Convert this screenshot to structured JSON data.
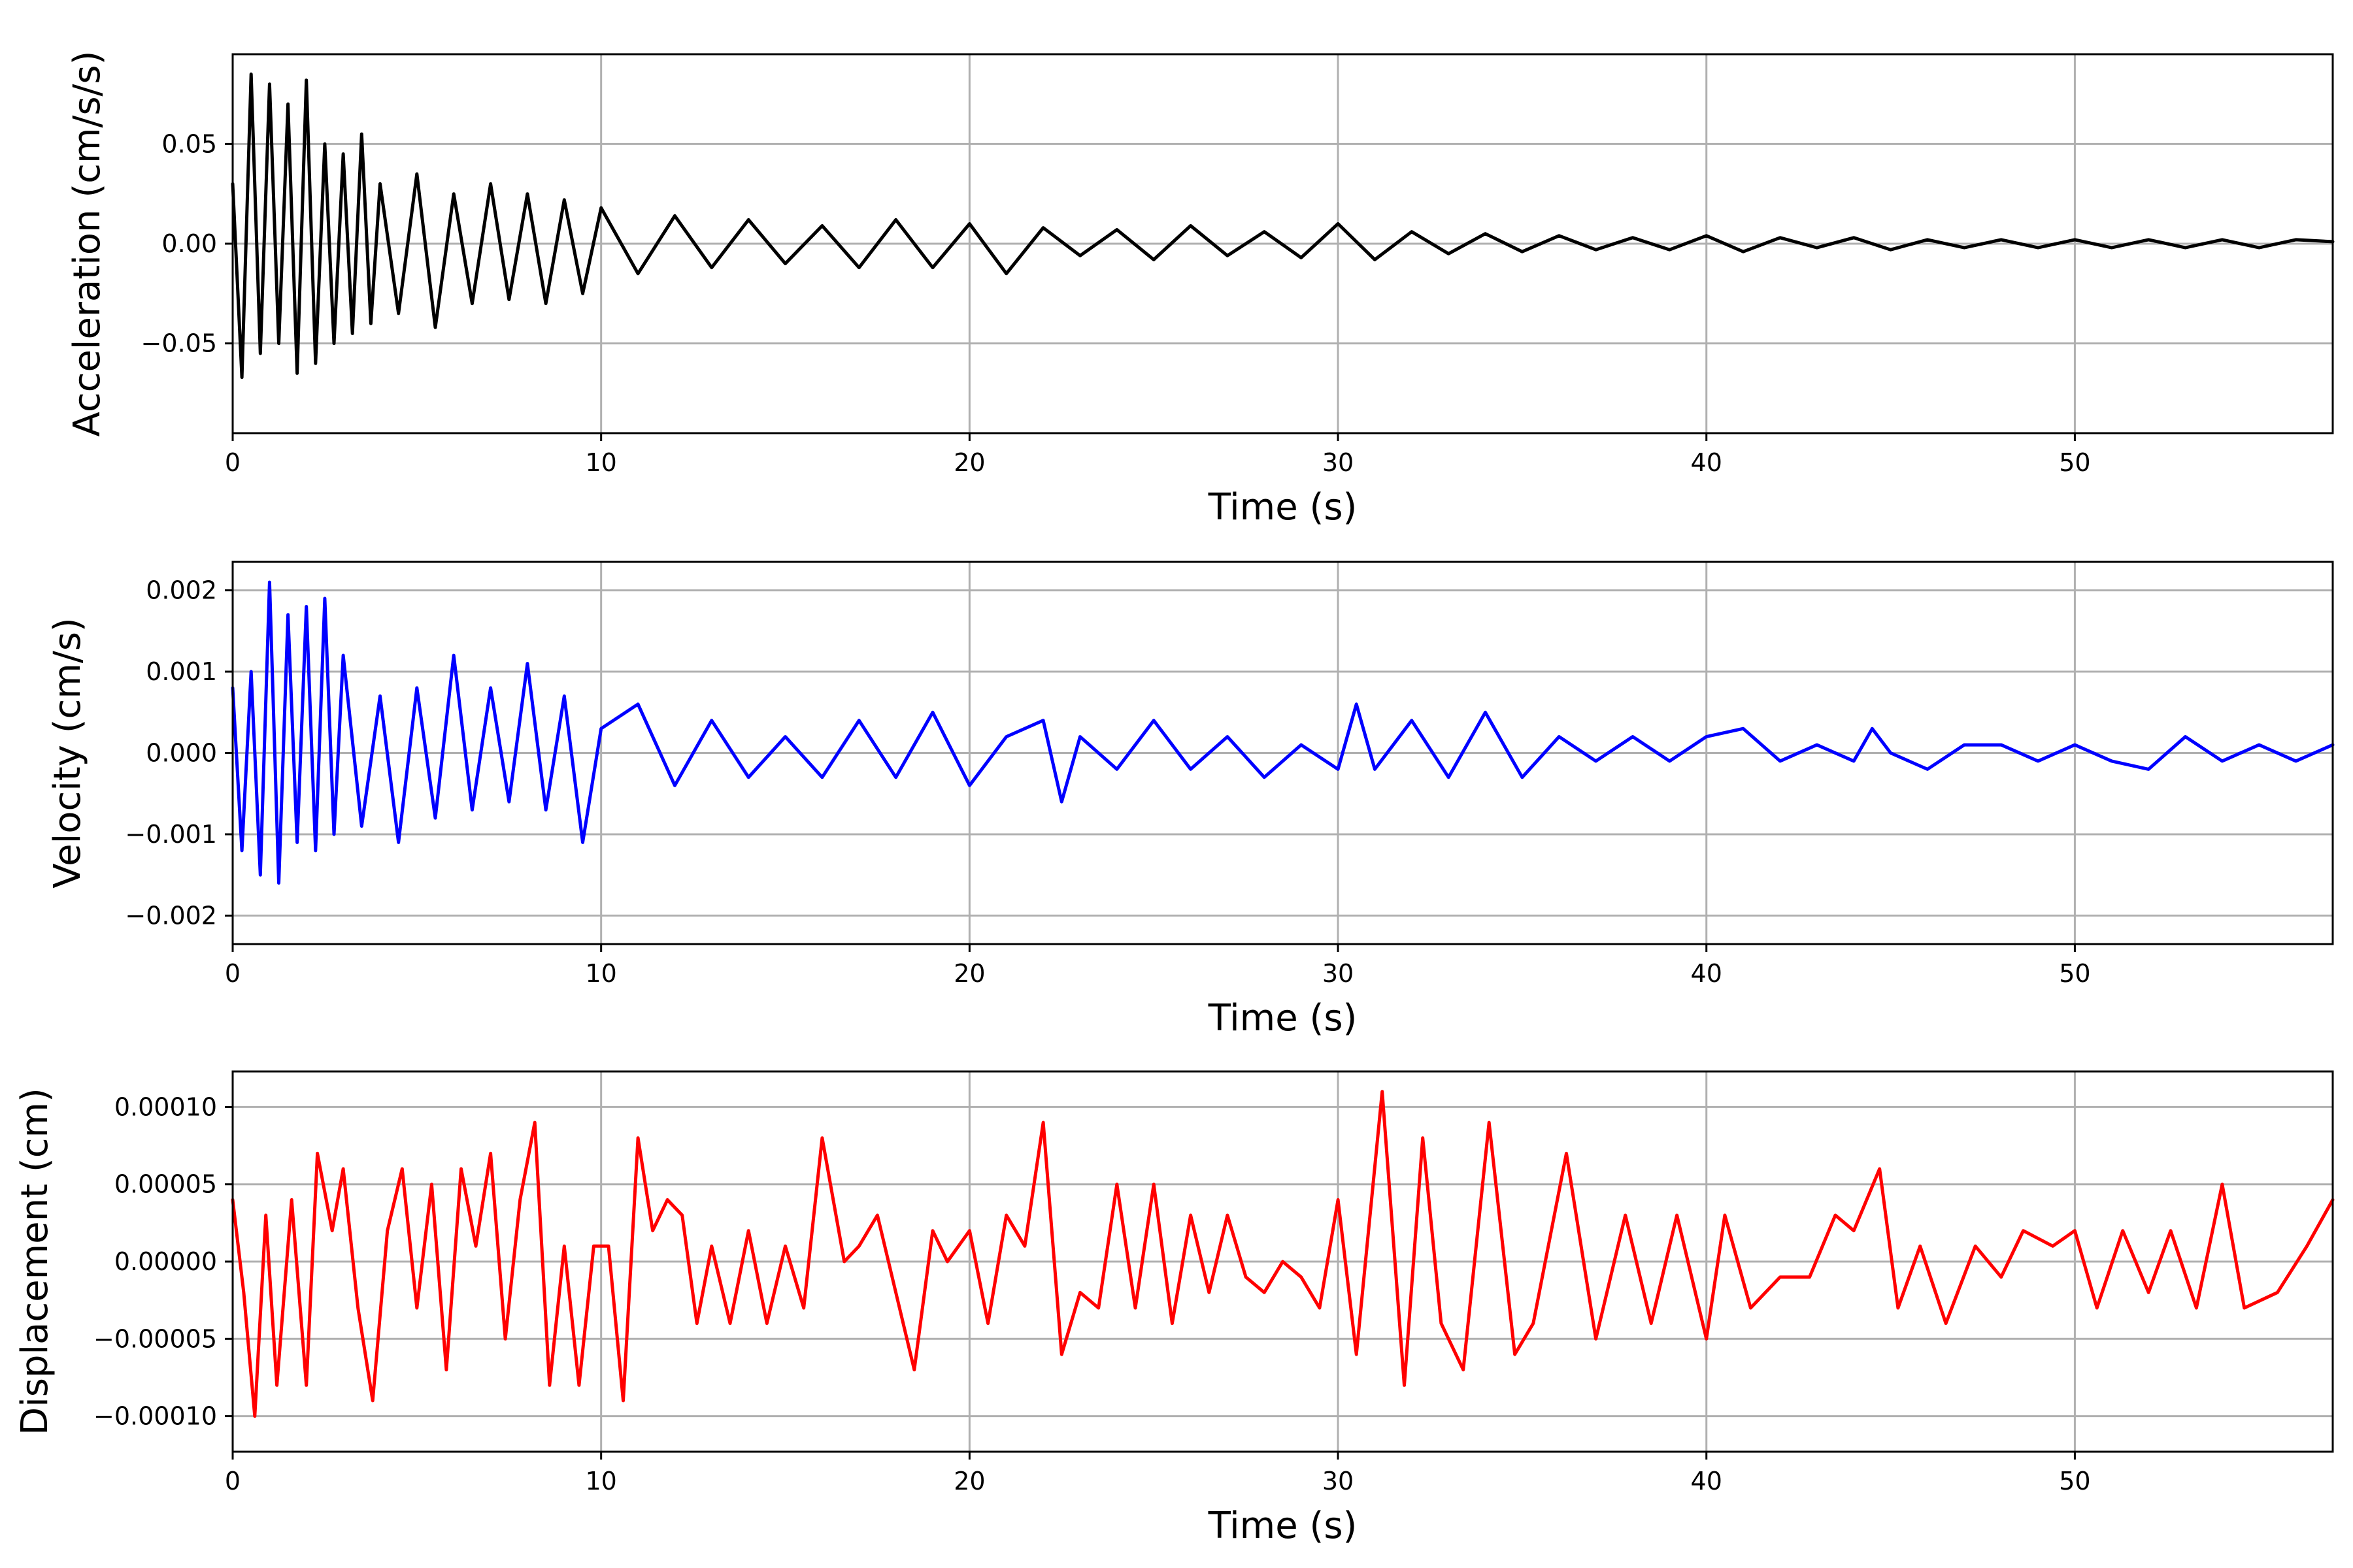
{
  "chart_data": [
    {
      "type": "line",
      "xlabel": "Time (s)",
      "ylabel": "Acceleration (cm/s/s)",
      "xlim": [
        0,
        57
      ],
      "ylim": [
        -0.095,
        0.095
      ],
      "xticks": [
        0,
        10,
        20,
        30,
        40,
        50
      ],
      "yticks": [
        0.05,
        0.0,
        -0.05
      ],
      "xtick_labels": [
        "0",
        "10",
        "20",
        "30",
        "40",
        "50"
      ],
      "ytick_labels": [
        "0.05",
        "0.00",
        "−0.05"
      ],
      "grid": true,
      "color": "#000000",
      "series": [
        {
          "x": [
            0,
            0.25,
            0.5,
            0.75,
            1,
            1.25,
            1.5,
            1.75,
            2,
            2.25,
            2.5,
            2.75,
            3,
            3.25,
            3.5,
            3.75,
            4,
            4.5,
            5,
            5.5,
            6,
            6.5,
            7,
            7.5,
            8,
            8.5,
            9,
            9.5,
            10,
            11,
            12,
            13,
            14,
            15,
            16,
            17,
            18,
            19,
            20,
            21,
            22,
            23,
            24,
            25,
            26,
            27,
            28,
            29,
            30,
            31,
            32,
            33,
            34,
            35,
            36,
            37,
            38,
            39,
            40,
            41,
            42,
            43,
            44,
            45,
            46,
            47,
            48,
            49,
            50,
            51,
            52,
            53,
            54,
            55,
            56,
            57
          ],
          "y": [
            0.03,
            -0.067,
            0.085,
            -0.055,
            0.08,
            -0.05,
            0.07,
            -0.065,
            0.082,
            -0.06,
            0.05,
            -0.05,
            0.045,
            -0.045,
            0.055,
            -0.04,
            0.03,
            -0.035,
            0.035,
            -0.042,
            0.025,
            -0.03,
            0.03,
            -0.028,
            0.025,
            -0.03,
            0.022,
            -0.025,
            0.018,
            -0.015,
            0.014,
            -0.012,
            0.012,
            -0.01,
            0.009,
            -0.012,
            0.012,
            -0.012,
            0.01,
            -0.015,
            0.008,
            -0.006,
            0.007,
            -0.008,
            0.009,
            -0.006,
            0.006,
            -0.007,
            0.01,
            -0.008,
            0.006,
            -0.005,
            0.005,
            -0.004,
            0.004,
            -0.003,
            0.003,
            -0.003,
            0.004,
            -0.004,
            0.003,
            -0.002,
            0.003,
            -0.003,
            0.002,
            -0.002,
            0.002,
            -0.002,
            0.002,
            -0.002,
            0.002,
            -0.002,
            0.002,
            -0.002,
            0.002,
            0.001
          ]
        }
      ]
    },
    {
      "type": "line",
      "xlabel": "Time (s)",
      "ylabel": "Velocity (cm/s)",
      "xlim": [
        0,
        57
      ],
      "ylim": [
        -0.00235,
        0.00235
      ],
      "xticks": [
        0,
        10,
        20,
        30,
        40,
        50
      ],
      "yticks": [
        0.002,
        0.001,
        0.0,
        -0.001,
        -0.002
      ],
      "xtick_labels": [
        "0",
        "10",
        "20",
        "30",
        "40",
        "50"
      ],
      "ytick_labels": [
        "0.002",
        "0.001",
        "0.000",
        "−0.001",
        "−0.002"
      ],
      "grid": true,
      "color": "#0000ff",
      "series": [
        {
          "x": [
            0,
            0.25,
            0.5,
            0.75,
            1,
            1.25,
            1.5,
            1.75,
            2,
            2.25,
            2.5,
            2.75,
            3,
            3.5,
            4,
            4.5,
            5,
            5.5,
            6,
            6.5,
            7,
            7.5,
            8,
            8.5,
            9,
            9.5,
            10,
            11,
            12,
            13,
            14,
            15,
            16,
            17,
            18,
            19,
            20,
            21,
            22,
            22.5,
            23,
            24,
            25,
            26,
            27,
            28,
            29,
            30,
            30.5,
            31,
            32,
            33,
            34,
            35,
            36,
            37,
            38,
            39,
            40,
            41,
            42,
            43,
            44,
            44.5,
            45,
            46,
            47,
            48,
            49,
            50,
            51,
            52,
            53,
            54,
            55,
            56,
            57
          ],
          "y": [
            0.0008,
            -0.0012,
            0.001,
            -0.0015,
            0.0021,
            -0.0016,
            0.0017,
            -0.0011,
            0.0018,
            -0.0012,
            0.0019,
            -0.001,
            0.0012,
            -0.0009,
            0.0007,
            -0.0011,
            0.0008,
            -0.0008,
            0.0012,
            -0.0007,
            0.0008,
            -0.0006,
            0.0011,
            -0.0007,
            0.0007,
            -0.0011,
            0.0003,
            0.0006,
            -0.0004,
            0.0004,
            -0.0003,
            0.0002,
            -0.0003,
            0.0004,
            -0.0003,
            0.0005,
            -0.0004,
            0.0002,
            0.0004,
            -0.0006,
            0.0002,
            -0.0002,
            0.0004,
            -0.0002,
            0.0002,
            -0.0003,
            0.0001,
            -0.0002,
            0.0006,
            -0.0002,
            0.0004,
            -0.0003,
            0.0005,
            -0.0003,
            0.0002,
            -0.0001,
            0.0002,
            -0.0001,
            0.0002,
            0.0003,
            -0.0001,
            0.0001,
            -0.0001,
            0.0003,
            0.0,
            -0.0002,
            0.0001,
            0.0001,
            -0.0001,
            0.0001,
            -0.0001,
            -0.0002,
            0.0002,
            -0.0001,
            0.0001,
            -0.0001,
            0.0001
          ]
        }
      ]
    },
    {
      "type": "line",
      "xlabel": "Time (s)",
      "ylabel": "Displacement (cm)",
      "xlim": [
        0,
        57
      ],
      "ylim": [
        -0.000123,
        0.000123
      ],
      "xticks": [
        0,
        10,
        20,
        30,
        40,
        50
      ],
      "yticks": [
        0.0001,
        5e-05,
        0.0,
        -5e-05,
        -0.0001
      ],
      "xtick_labels": [
        "0",
        "10",
        "20",
        "30",
        "40",
        "50"
      ],
      "ytick_labels": [
        "0.00010",
        "0.00005",
        "0.00000",
        "−0.00005",
        "−0.00010"
      ],
      "grid": true,
      "color": "#ff0000",
      "series": [
        {
          "x": [
            0,
            0.3,
            0.6,
            0.9,
            1.2,
            1.6,
            2.0,
            2.3,
            2.7,
            3.0,
            3.4,
            3.8,
            4.2,
            4.6,
            5.0,
            5.4,
            5.8,
            6.2,
            6.6,
            7.0,
            7.4,
            7.8,
            8.2,
            8.6,
            9.0,
            9.4,
            9.8,
            10.2,
            10.6,
            11.0,
            11.4,
            11.8,
            12.2,
            12.6,
            13.0,
            13.5,
            14.0,
            14.5,
            15.0,
            15.5,
            16.0,
            16.6,
            17.0,
            17.5,
            18.0,
            18.5,
            19.0,
            19.4,
            20.0,
            20.5,
            21.0,
            21.5,
            22.0,
            22.5,
            23.0,
            23.5,
            24.0,
            24.5,
            25.0,
            25.5,
            26.0,
            26.5,
            27.0,
            27.5,
            28.0,
            28.5,
            29.0,
            29.5,
            30.0,
            30.5,
            31.2,
            31.8,
            32.3,
            32.8,
            33.4,
            34.1,
            34.8,
            35.3,
            36.2,
            37.0,
            37.8,
            38.5,
            39.2,
            40.0,
            40.5,
            41.2,
            42.0,
            42.8,
            43.5,
            44.0,
            44.7,
            45.2,
            45.8,
            46.5,
            47.3,
            48.0,
            48.6,
            49.4,
            50.0,
            50.6,
            51.3,
            52.0,
            52.6,
            53.3,
            54.0,
            54.6,
            55.5,
            56.3,
            57
          ],
          "y": [
            4e-05,
            -2e-05,
            -0.0001,
            3e-05,
            -8e-05,
            4e-05,
            -8e-05,
            7e-05,
            2e-05,
            6e-05,
            -3e-05,
            -9e-05,
            2e-05,
            6e-05,
            -3e-05,
            5e-05,
            -7e-05,
            6e-05,
            1e-05,
            7e-05,
            -5e-05,
            4e-05,
            9e-05,
            -8e-05,
            1e-05,
            -8e-05,
            1e-05,
            1e-05,
            -9e-05,
            8e-05,
            2e-05,
            4e-05,
            3e-05,
            -4e-05,
            1e-05,
            -4e-05,
            2e-05,
            -4e-05,
            1e-05,
            -3e-05,
            8e-05,
            0.0,
            1e-05,
            3e-05,
            -2e-05,
            -7e-05,
            2e-05,
            0.0,
            2e-05,
            -4e-05,
            3e-05,
            1e-05,
            9e-05,
            -6e-05,
            -2e-05,
            -3e-05,
            5e-05,
            -3e-05,
            5e-05,
            -4e-05,
            3e-05,
            -2e-05,
            3e-05,
            -1e-05,
            -2e-05,
            0.0,
            -1e-05,
            -3e-05,
            4e-05,
            -6e-05,
            0.00011,
            -8e-05,
            8e-05,
            -4e-05,
            -7e-05,
            9e-05,
            -6e-05,
            -4e-05,
            7e-05,
            -5e-05,
            3e-05,
            -4e-05,
            3e-05,
            -5e-05,
            3e-05,
            -3e-05,
            -1e-05,
            -1e-05,
            3e-05,
            2e-05,
            6e-05,
            -3e-05,
            1e-05,
            -4e-05,
            1e-05,
            -1e-05,
            2e-05,
            1e-05,
            2e-05,
            -3e-05,
            2e-05,
            -2e-05,
            2e-05,
            -3e-05,
            5e-05,
            -3e-05,
            -2e-05,
            1e-05,
            4e-05
          ]
        }
      ]
    }
  ]
}
